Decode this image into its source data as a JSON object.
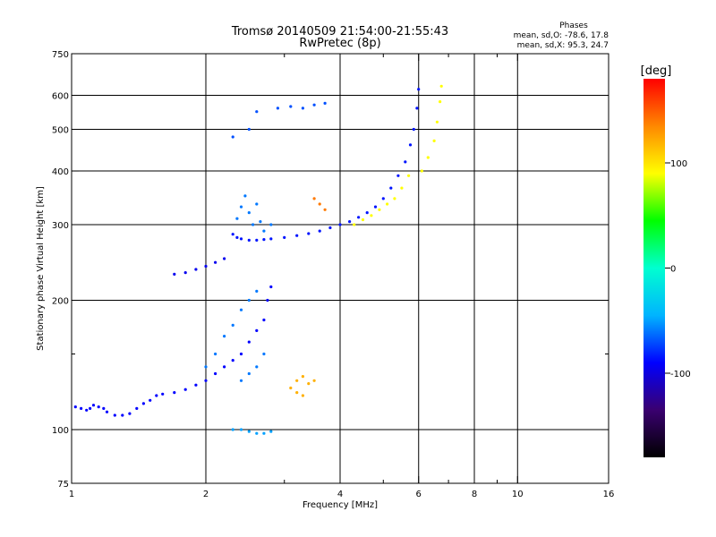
{
  "chart_data": {
    "type": "scatter",
    "title": "Tromsø 20140509 21:54:00-21:55:43",
    "subtitle": "RwPretec (8p)",
    "stats": {
      "heading": "Phases",
      "line1": "mean, sd,O: -78.6, 17.8",
      "line2": "mean, sd,X:  95.3, 24.7"
    },
    "xlabel": "Frequency [MHz]",
    "ylabel": "Stationary phase Virtual Height [km]",
    "x_scale": "log",
    "y_scale": "log",
    "xlim": [
      1,
      16
    ],
    "ylim": [
      75,
      750
    ],
    "x_ticks": [
      1,
      2,
      4,
      6,
      8,
      10,
      16
    ],
    "x_tick_labels": [
      "1",
      "2",
      "4",
      "6",
      "8",
      "10",
      "16"
    ],
    "x_minor_ticks": [
      3,
      5,
      7,
      9
    ],
    "y_ticks": [
      75,
      100,
      200,
      300,
      400,
      500,
      600,
      750
    ],
    "y_tick_labels": [
      "75",
      "100",
      "200",
      "300",
      "400",
      "500",
      "600",
      "750"
    ],
    "y_minor_ticks": [
      150
    ],
    "grid": true,
    "colorbar": {
      "label": "[deg]",
      "range": [
        -180,
        180
      ],
      "ticks": [
        100,
        0,
        -100
      ],
      "tick_labels": [
        "100",
        "0",
        "-100"
      ],
      "colormap": [
        "#000000",
        "#3a0070",
        "#0000ff",
        "#00b4ff",
        "#00ffd0",
        "#00ff00",
        "#ffff00",
        "#ff8800",
        "#ff0000"
      ]
    },
    "series": [
      {
        "name": "",
        "phase": -90,
        "points": [
          [
            1.02,
            113
          ],
          [
            1.05,
            112
          ],
          [
            1.08,
            111
          ],
          [
            1.1,
            112
          ],
          [
            1.12,
            114
          ],
          [
            1.15,
            113
          ],
          [
            1.18,
            112
          ],
          [
            1.2,
            110
          ],
          [
            1.25,
            108
          ],
          [
            1.3,
            108
          ],
          [
            1.35,
            109
          ],
          [
            1.4,
            112
          ],
          [
            1.45,
            115
          ],
          [
            1.5,
            117
          ],
          [
            1.55,
            120
          ],
          [
            1.6,
            121
          ],
          [
            1.7,
            122
          ],
          [
            1.8,
            124
          ],
          [
            1.9,
            127
          ],
          [
            2.0,
            130
          ],
          [
            2.1,
            135
          ],
          [
            2.2,
            140
          ],
          [
            2.3,
            145
          ],
          [
            2.4,
            150
          ],
          [
            2.5,
            160
          ],
          [
            2.6,
            170
          ],
          [
            2.7,
            180
          ],
          [
            2.75,
            200
          ],
          [
            2.8,
            215
          ]
        ]
      },
      {
        "name": "",
        "phase": -60,
        "points": [
          [
            2.0,
            140
          ],
          [
            2.1,
            150
          ],
          [
            2.2,
            165
          ],
          [
            2.3,
            175
          ],
          [
            2.4,
            190
          ],
          [
            2.5,
            200
          ],
          [
            2.6,
            210
          ],
          [
            2.4,
            130
          ],
          [
            2.5,
            135
          ],
          [
            2.6,
            140
          ],
          [
            2.7,
            150
          ]
        ]
      },
      {
        "name": "",
        "phase": -85,
        "points": [
          [
            2.3,
            285
          ],
          [
            2.35,
            280
          ],
          [
            2.4,
            278
          ],
          [
            2.5,
            276
          ],
          [
            2.6,
            276
          ],
          [
            2.7,
            277
          ],
          [
            2.8,
            278
          ],
          [
            3.0,
            280
          ],
          [
            3.2,
            283
          ],
          [
            3.4,
            286
          ],
          [
            3.6,
            290
          ],
          [
            3.8,
            295
          ],
          [
            4.0,
            300
          ],
          [
            4.2,
            305
          ],
          [
            4.4,
            312
          ],
          [
            4.6,
            320
          ],
          [
            4.8,
            330
          ],
          [
            5.0,
            345
          ],
          [
            5.2,
            365
          ],
          [
            5.4,
            390
          ],
          [
            5.6,
            420
          ],
          [
            5.75,
            460
          ],
          [
            5.85,
            500
          ],
          [
            5.95,
            560
          ],
          [
            6.0,
            620
          ]
        ]
      },
      {
        "name": "",
        "phase": -60,
        "points": [
          [
            2.35,
            310
          ],
          [
            2.4,
            330
          ],
          [
            2.45,
            350
          ],
          [
            2.5,
            320
          ],
          [
            2.55,
            300
          ],
          [
            2.6,
            335
          ],
          [
            2.65,
            305
          ],
          [
            2.7,
            290
          ],
          [
            2.8,
            300
          ]
        ]
      },
      {
        "name": "",
        "phase": -95,
        "points": [
          [
            1.7,
            230
          ],
          [
            1.8,
            232
          ],
          [
            1.9,
            236
          ],
          [
            2.0,
            240
          ],
          [
            2.1,
            245
          ],
          [
            2.2,
            250
          ]
        ]
      },
      {
        "name": "",
        "phase": 90,
        "points": [
          [
            4.3,
            300
          ],
          [
            4.5,
            308
          ],
          [
            4.7,
            315
          ],
          [
            4.9,
            325
          ],
          [
            5.1,
            335
          ],
          [
            5.3,
            345
          ],
          [
            5.5,
            365
          ],
          [
            5.7,
            390
          ],
          [
            6.1,
            400
          ],
          [
            6.3,
            430
          ],
          [
            6.5,
            470
          ],
          [
            6.6,
            520
          ],
          [
            6.7,
            580
          ],
          [
            6.75,
            630
          ]
        ]
      },
      {
        "name": "",
        "phase": 120,
        "points": [
          [
            3.1,
            125
          ],
          [
            3.2,
            130
          ],
          [
            3.3,
            133
          ],
          [
            3.4,
            128
          ],
          [
            3.2,
            122
          ],
          [
            3.3,
            120
          ],
          [
            3.5,
            130
          ]
        ]
      },
      {
        "name": "",
        "phase": -70,
        "points": [
          [
            2.3,
            480
          ],
          [
            2.5,
            500
          ],
          [
            2.6,
            550
          ],
          [
            2.9,
            560
          ],
          [
            3.1,
            565
          ],
          [
            3.3,
            560
          ],
          [
            3.5,
            570
          ],
          [
            3.7,
            575
          ]
        ]
      },
      {
        "name": "",
        "phase": -50,
        "points": [
          [
            2.3,
            100
          ],
          [
            2.4,
            100
          ],
          [
            2.5,
            99
          ],
          [
            2.6,
            98
          ],
          [
            2.7,
            98
          ],
          [
            2.8,
            99
          ]
        ]
      },
      {
        "name": "",
        "phase": 140,
        "points": [
          [
            3.5,
            345
          ],
          [
            3.6,
            335
          ],
          [
            3.7,
            325
          ]
        ]
      }
    ]
  }
}
